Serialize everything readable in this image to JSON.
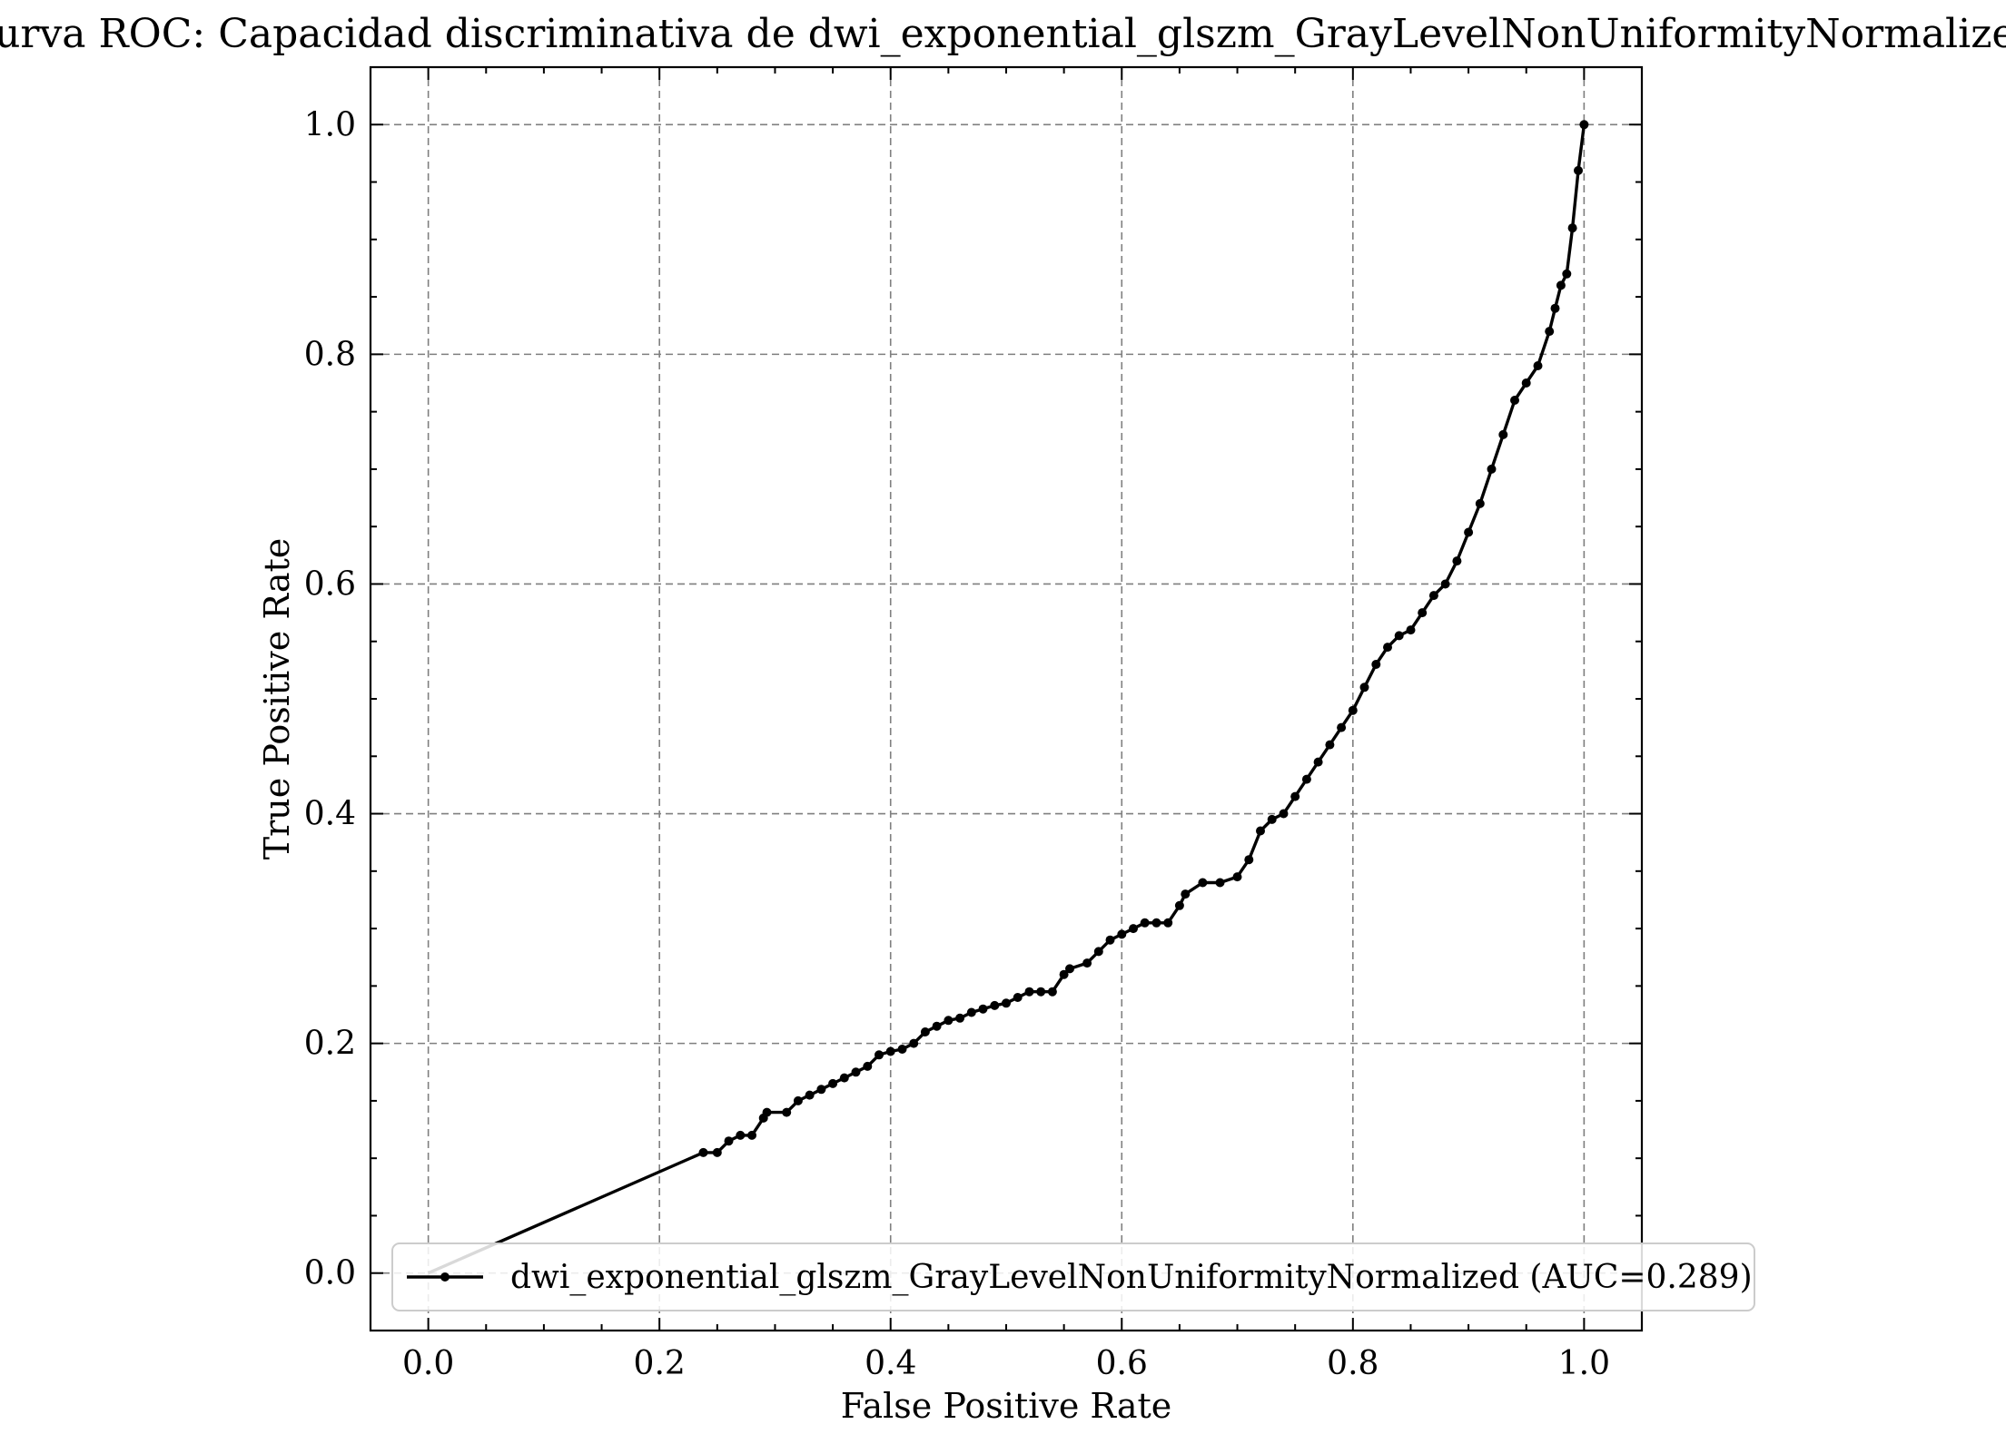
{
  "chart_data": {
    "type": "line",
    "title": "Curva ROC: Capacidad discriminativa de dwi_exponential_glszm_GrayLevelNonUniformityNormalized",
    "xlabel": "False Positive Rate",
    "ylabel": "True Positive Rate",
    "xlim": [
      -0.05,
      1.05
    ],
    "ylim": [
      -0.05,
      1.05
    ],
    "xticks": [
      "0.0",
      "0.2",
      "0.4",
      "0.6",
      "0.8",
      "1.0"
    ],
    "yticks": [
      "0.0",
      "0.2",
      "0.4",
      "0.6",
      "0.8",
      "1.0"
    ],
    "grid": true,
    "legend_position": "lower-right",
    "series": [
      {
        "name": "dwi_exponential_glszm_GrayLevelNonUniformityNormalized (AUC=0.289)",
        "color": "#000000",
        "marker": "dot",
        "x": [
          0.0,
          0.238,
          0.25,
          0.26,
          0.27,
          0.28,
          0.29,
          0.293,
          0.31,
          0.32,
          0.33,
          0.34,
          0.35,
          0.36,
          0.37,
          0.38,
          0.39,
          0.4,
          0.41,
          0.42,
          0.43,
          0.44,
          0.45,
          0.46,
          0.47,
          0.48,
          0.49,
          0.5,
          0.51,
          0.52,
          0.53,
          0.54,
          0.55,
          0.555,
          0.57,
          0.58,
          0.59,
          0.6,
          0.61,
          0.62,
          0.63,
          0.64,
          0.65,
          0.655,
          0.67,
          0.685,
          0.7,
          0.71,
          0.72,
          0.73,
          0.74,
          0.75,
          0.76,
          0.77,
          0.78,
          0.79,
          0.8,
          0.81,
          0.82,
          0.83,
          0.84,
          0.85,
          0.86,
          0.87,
          0.88,
          0.89,
          0.9,
          0.91,
          0.92,
          0.93,
          0.94,
          0.95,
          0.96,
          0.97,
          0.975,
          0.98,
          0.985,
          0.99,
          0.995,
          1.0
        ],
        "y": [
          0.0,
          0.105,
          0.105,
          0.115,
          0.12,
          0.12,
          0.135,
          0.14,
          0.14,
          0.15,
          0.155,
          0.16,
          0.165,
          0.17,
          0.175,
          0.18,
          0.19,
          0.193,
          0.195,
          0.2,
          0.21,
          0.215,
          0.22,
          0.222,
          0.227,
          0.23,
          0.233,
          0.235,
          0.24,
          0.245,
          0.245,
          0.245,
          0.26,
          0.265,
          0.27,
          0.28,
          0.29,
          0.295,
          0.3,
          0.305,
          0.305,
          0.305,
          0.32,
          0.33,
          0.34,
          0.34,
          0.345,
          0.36,
          0.385,
          0.395,
          0.4,
          0.415,
          0.43,
          0.445,
          0.46,
          0.475,
          0.49,
          0.51,
          0.53,
          0.545,
          0.555,
          0.56,
          0.575,
          0.59,
          0.6,
          0.62,
          0.645,
          0.67,
          0.7,
          0.73,
          0.76,
          0.775,
          0.79,
          0.82,
          0.84,
          0.86,
          0.87,
          0.91,
          0.96,
          1.0
        ]
      }
    ]
  }
}
